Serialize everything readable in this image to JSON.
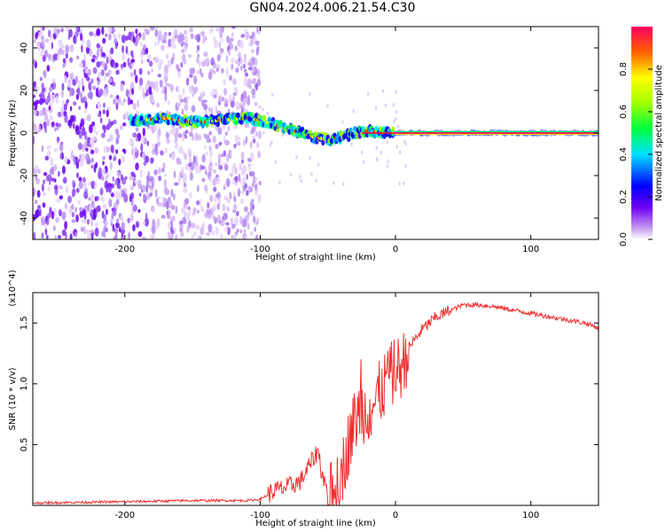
{
  "title": "GN04.2024.006.21.54.C30",
  "chart_data": [
    {
      "type": "heatmap",
      "title": "",
      "xlabel": "Height of straight line (km)",
      "ylabel": "Frequency (Hz)",
      "xlim": [
        -268,
        150
      ],
      "ylim": [
        -50,
        50
      ],
      "xticks": [
        -200,
        -100,
        0,
        100
      ],
      "xtick_labels": [
        "-200",
        "-100",
        "0",
        "100"
      ],
      "yticks": [
        -40,
        -20,
        0,
        20,
        40
      ],
      "ytick_labels": [
        "-40",
        "-20",
        "0",
        "20",
        "40"
      ],
      "colorbar": {
        "label": "Normalized spectral amplitude",
        "range": [
          0,
          1
        ],
        "ticks": [
          0.0,
          0.2,
          0.4,
          0.6,
          0.8
        ],
        "tick_labels": [
          "0.0",
          "0.2",
          "0.4",
          "0.6",
          "0.8"
        ]
      },
      "ridge": {
        "x": [
          -190,
          -170,
          -150,
          -130,
          -110,
          -100,
          -90,
          -80,
          -70,
          -60,
          -50,
          -40,
          -30,
          -20,
          -10,
          0,
          50,
          100,
          150
        ],
        "y": [
          6,
          7,
          5,
          6,
          7,
          6,
          4,
          2,
          0,
          -2,
          -3,
          -2,
          0,
          1,
          0,
          0,
          0,
          0,
          0
        ]
      },
      "noise_region_x": [
        -268,
        -100
      ]
    },
    {
      "type": "line",
      "title": "",
      "xlabel": "Height of straight line (km)",
      "ylabel": "SNR (10 * v/v)",
      "y_multiplier": "(x10^4)",
      "xlim": [
        -268,
        150
      ],
      "ylim": [
        0,
        1.75
      ],
      "xticks": [
        -200,
        -100,
        0,
        100
      ],
      "xtick_labels": [
        "-200",
        "-100",
        "0",
        "100"
      ],
      "yticks": [
        0.5,
        1.0,
        1.5
      ],
      "ytick_labels": [
        "0.5",
        "1.0",
        "1.5"
      ],
      "color": "#f03030",
      "series": [
        {
          "x": [
            -268,
            -200,
            -150,
            -110,
            -100,
            -90,
            -80,
            -70,
            -65,
            -60,
            -57,
            -55,
            -50,
            -45,
            -40,
            -35,
            -30,
            -25,
            -20,
            -15,
            -10,
            -5,
            0,
            5,
            10,
            20,
            30,
            40,
            50,
            60,
            70,
            80,
            90,
            100,
            110,
            120,
            130,
            140,
            150
          ],
          "y": [
            0.02,
            0.03,
            0.04,
            0.04,
            0.05,
            0.12,
            0.15,
            0.2,
            0.3,
            0.4,
            0.45,
            0.3,
            0.1,
            0.08,
            0.25,
            0.5,
            0.7,
            0.8,
            0.75,
            0.85,
            0.95,
            1.05,
            1.1,
            1.15,
            1.3,
            1.45,
            1.55,
            1.6,
            1.65,
            1.65,
            1.64,
            1.62,
            1.6,
            1.58,
            1.56,
            1.54,
            1.52,
            1.5,
            1.46
          ]
        }
      ],
      "grid": false
    }
  ]
}
